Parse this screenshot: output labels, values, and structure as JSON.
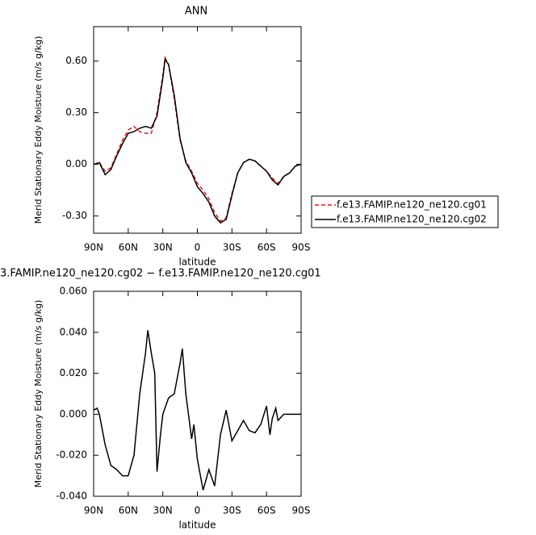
{
  "chart_data": [
    {
      "type": "line",
      "title": "ANN",
      "xlabel": "latitude",
      "ylabel": "Merid Stationary Eddy Moisture (m/s g/kg)",
      "xlim": [
        90,
        -90
      ],
      "ylim": [
        -0.4,
        0.8
      ],
      "xticks": [
        {
          "value": 90,
          "label": "90N"
        },
        {
          "value": 60,
          "label": "60N"
        },
        {
          "value": 30,
          "label": "30N"
        },
        0,
        {
          "value": -30,
          "label": "30S"
        },
        {
          "value": -60,
          "label": "60S"
        },
        {
          "value": -90,
          "label": "90S"
        }
      ],
      "yticks": [
        {
          "value": 0.6,
          "label": "0.60"
        },
        {
          "value": 0.3,
          "label": "0.30"
        },
        {
          "value": 0,
          "label": "0.00"
        },
        {
          "value": -0.3,
          "label": "-0.30"
        }
      ],
      "x": [
        90,
        85,
        80,
        75,
        70,
        65,
        60,
        55,
        50,
        45,
        40,
        35,
        30,
        28,
        25,
        20,
        15,
        10,
        5,
        0,
        -5,
        -10,
        -15,
        -20,
        -25,
        -30,
        -35,
        -40,
        -45,
        -50,
        -55,
        -60,
        -65,
        -70,
        -75,
        -80,
        -85,
        -90
      ],
      "series": [
        {
          "name": "f.e13.FAMIP.ne120_ne120.cg01",
          "color": "#e41a1c",
          "dashed": true,
          "values": [
            0.0,
            0.01,
            -0.04,
            -0.02,
            0.06,
            0.14,
            0.2,
            0.22,
            0.19,
            0.18,
            0.18,
            0.3,
            0.52,
            0.62,
            0.58,
            0.38,
            0.14,
            0.02,
            -0.04,
            -0.11,
            -0.15,
            -0.2,
            -0.28,
            -0.33,
            -0.31,
            -0.17,
            -0.05,
            0.01,
            0.03,
            0.02,
            -0.01,
            -0.04,
            -0.08,
            -0.11,
            -0.07,
            -0.05,
            -0.01,
            0.0
          ]
        },
        {
          "name": "f.e13.FAMIP.ne120_ne120.cg02",
          "color": "#000000",
          "dashed": false,
          "values": [
            0.0,
            0.01,
            -0.06,
            -0.03,
            0.05,
            0.12,
            0.18,
            0.19,
            0.21,
            0.22,
            0.21,
            0.28,
            0.5,
            0.61,
            0.58,
            0.4,
            0.15,
            0.01,
            -0.05,
            -0.13,
            -0.17,
            -0.22,
            -0.3,
            -0.34,
            -0.32,
            -0.18,
            -0.05,
            0.01,
            0.03,
            0.02,
            -0.01,
            -0.04,
            -0.09,
            -0.12,
            -0.07,
            -0.05,
            -0.01,
            0.0
          ]
        }
      ]
    },
    {
      "type": "line",
      "title": "3.FAMIP.ne120_ne120.cg02 − f.e13.FAMIP.ne120_ne120.cg01",
      "xlabel": "latitude",
      "ylabel": "Merid Stationary Eddy Moisture (m/s g/kg)",
      "xlim": [
        90,
        -90
      ],
      "ylim": [
        -0.04,
        0.06
      ],
      "xticks": [
        {
          "value": 90,
          "label": "90N"
        },
        {
          "value": 60,
          "label": "60N"
        },
        {
          "value": 30,
          "label": "30N"
        },
        0,
        {
          "value": -30,
          "label": "30S"
        },
        {
          "value": -60,
          "label": "60S"
        },
        {
          "value": -90,
          "label": "90S"
        }
      ],
      "yticks": [
        {
          "value": 0.06,
          "label": "0.060"
        },
        {
          "value": 0.04,
          "label": "0.040"
        },
        {
          "value": 0.02,
          "label": "0.020"
        },
        {
          "value": 0,
          "label": "0.000"
        },
        {
          "value": -0.02,
          "label": "-0.020"
        },
        {
          "value": -0.04,
          "label": "-0.040"
        }
      ],
      "x": [
        90,
        87,
        85,
        80,
        75,
        70,
        65,
        60,
        55,
        50,
        45,
        43,
        40,
        37,
        35,
        32,
        30,
        25,
        20,
        15,
        13,
        10,
        5,
        3,
        0,
        -5,
        -10,
        -15,
        -20,
        -25,
        -30,
        -35,
        -40,
        -45,
        -50,
        -55,
        -60,
        -63,
        -65,
        -68,
        -70,
        -75,
        -80,
        -90
      ],
      "series": [
        {
          "color": "#000000",
          "dashed": false,
          "values": [
            0.002,
            0.003,
            0.0,
            -0.015,
            -0.025,
            -0.027,
            -0.03,
            -0.03,
            -0.02,
            0.01,
            0.03,
            0.041,
            0.03,
            0.02,
            -0.028,
            -0.01,
            0.0,
            0.008,
            0.01,
            0.025,
            0.032,
            0.01,
            -0.012,
            -0.005,
            -0.022,
            -0.037,
            -0.027,
            -0.035,
            -0.01,
            0.002,
            -0.013,
            -0.008,
            -0.003,
            -0.008,
            -0.009,
            -0.005,
            0.004,
            -0.01,
            -0.002,
            0.003,
            -0.003,
            0.0,
            0.0,
            0.0
          ]
        }
      ]
    }
  ]
}
